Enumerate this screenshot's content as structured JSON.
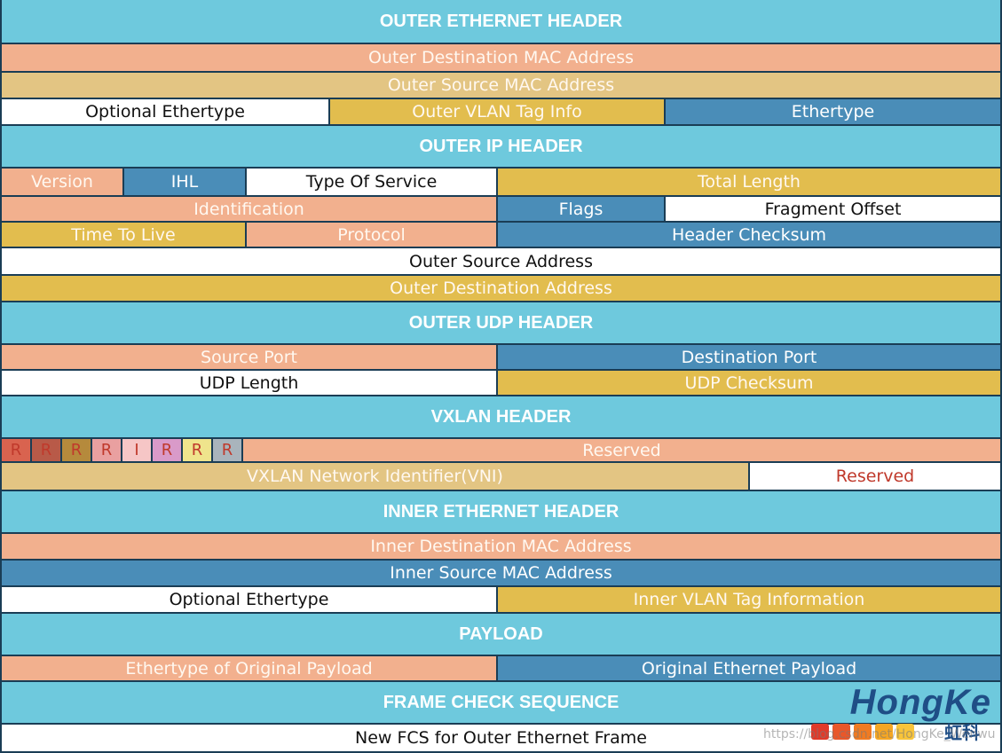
{
  "headers": {
    "outer_ethernet": "OUTER ETHERNET HEADER",
    "outer_ip": "OUTER IP HEADER",
    "outer_udp": "OUTER UDP HEADER",
    "vxlan": "VXLAN HEADER",
    "inner_ethernet": "INNER ETHERNET HEADER",
    "payload": "PAYLOAD",
    "fcs": "FRAME CHECK SEQUENCE"
  },
  "outer_ethernet": {
    "dest_mac": "Outer Destination MAC Address",
    "src_mac": "Outer Source MAC Address",
    "optional_ethertype": "Optional Ethertype",
    "vlan_tag": "Outer VLAN Tag Info",
    "ethertype": "Ethertype"
  },
  "outer_ip": {
    "version": "Version",
    "ihl": "IHL",
    "tos": "Type Of Service",
    "total_length": "Total Length",
    "identification": "Identification",
    "flags": "Flags",
    "fragment_offset": "Fragment Offset",
    "ttl": "Time To Live",
    "protocol": "Protocol",
    "header_checksum": "Header Checksum",
    "src_addr": "Outer Source Address",
    "dst_addr": "Outer Destination Address"
  },
  "outer_udp": {
    "src_port": "Source Port",
    "dst_port": "Destination Port",
    "length": "UDP Length",
    "checksum": "UDP Checksum"
  },
  "vxlan": {
    "flags": [
      "R",
      "R",
      "R",
      "R",
      "I",
      "R",
      "R",
      "R"
    ],
    "flag_colors": [
      "#d9634f",
      "#b85a48",
      "#b58a3c",
      "#e9a0a0",
      "#f6c6c6",
      "#d99ac9",
      "#efe48c",
      "#a9b4bc"
    ],
    "reserved_1": "Reserved",
    "vni": "VXLAN Network Identifier(VNI)",
    "reserved_2": "Reserved"
  },
  "inner_ethernet": {
    "dest_mac": "Inner Destination MAC Address",
    "src_mac": "Inner Source MAC Address",
    "optional_ethertype": "Optional Ethertype",
    "vlan_tag": "Inner VLAN Tag Information"
  },
  "payload": {
    "ethertype": "Ethertype of Original Payload",
    "original": "Original Ethernet Payload"
  },
  "fcs": {
    "new_fcs": "New FCS for Outer Ethernet Frame"
  },
  "logo": {
    "text": "HongKe",
    "chinese": "虹科",
    "square_colors": [
      "#e03a2a",
      "#e8572a",
      "#f07b22",
      "#f5a623",
      "#f8c43a"
    ]
  },
  "watermark": "https://blog.csdn.net/HongKe_Wenwu"
}
